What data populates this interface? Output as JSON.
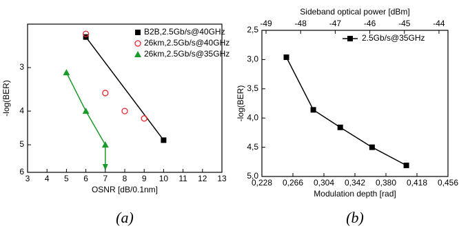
{
  "chart_data": [
    {
      "type": "scatter",
      "xlabel": "OSNR [dB/0.1nm]",
      "ylabel": "-log(BER)",
      "caption": "(a)",
      "xlim": [
        3,
        13
      ],
      "xticks": [
        3,
        4,
        5,
        6,
        7,
        8,
        9,
        10,
        11,
        12,
        13
      ],
      "ylim": [
        2.25,
        6
      ],
      "yticks": [
        3,
        4,
        5,
        6
      ],
      "yscale": "log",
      "y_inverted": true,
      "legend": "top-right",
      "series": [
        {
          "name": "B2B,2.5Gb/s@40GHz",
          "color": "#000000",
          "marker": "square",
          "line": true,
          "x": [
            6,
            10
          ],
          "values": [
            2.45,
            4.85
          ]
        },
        {
          "name": "26km,2.5Gb/s@40GHz",
          "color": "#e8262b",
          "marker": "circle-open",
          "line": false,
          "x": [
            6,
            7,
            8,
            9
          ],
          "values": [
            2.4,
            3.55,
            4.0,
            4.2
          ]
        },
        {
          "name": "26km,2.5Gb/s@35GHz",
          "color": "#1a9a2a",
          "marker": "triangle",
          "line": true,
          "x": [
            5,
            6,
            7
          ],
          "values": [
            3.1,
            4.0,
            5.0
          ]
        }
      ]
    },
    {
      "type": "line",
      "xlabel": "Modulation depth [rad]",
      "ylabel": "-log(BER)",
      "caption": "(b)",
      "x2label": "Sideband optical power [dBm]",
      "xlim": [
        0.228,
        0.456
      ],
      "xticks": [
        {
          "value": 0.228,
          "label": "0,228"
        },
        {
          "value": 0.266,
          "label": "0,266"
        },
        {
          "value": 0.304,
          "label": "0,304"
        },
        {
          "value": 0.342,
          "label": "0,342"
        },
        {
          "value": 0.38,
          "label": "0,380"
        },
        {
          "value": 0.418,
          "label": "0,418"
        },
        {
          "value": 0.456,
          "label": "0,456"
        }
      ],
      "x2lim": [
        -49.12,
        -43.74
      ],
      "x2ticks": [
        -49,
        -48,
        -47,
        -46,
        -45,
        -44
      ],
      "ylim": [
        2.5,
        5.0
      ],
      "y_inverted": true,
      "yticks": [
        {
          "value": 2.5,
          "label": "2,5"
        },
        {
          "value": 3.0,
          "label": "3,0"
        },
        {
          "value": 3.5,
          "label": "3,5"
        },
        {
          "value": 4.0,
          "label": "4,0"
        },
        {
          "value": 4.5,
          "label": "4,5"
        },
        {
          "value": 5.0,
          "label": "5,0"
        }
      ],
      "legend": "top-right",
      "series": [
        {
          "name": "2.5Gb/s@35GHz",
          "color": "#000000",
          "marker": "square",
          "line": true,
          "x": [
            0.258,
            0.291,
            0.324,
            0.363,
            0.405
          ],
          "values": [
            2.96,
            3.86,
            4.16,
            4.5,
            4.81
          ]
        }
      ]
    }
  ]
}
